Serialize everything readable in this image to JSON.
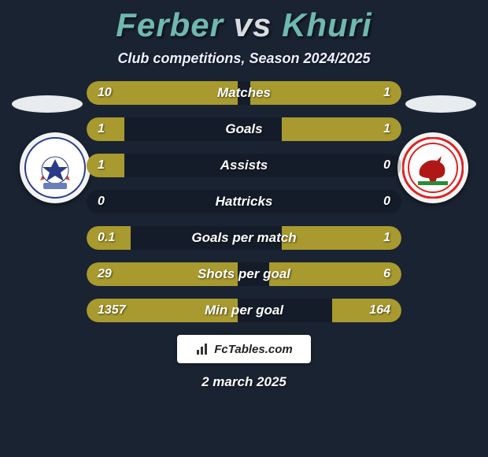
{
  "title": {
    "player1": "Ferber",
    "vs": "vs",
    "player2": "Khuri",
    "player1_color": "#6fb8b0",
    "vs_color": "#d8dce0",
    "player2_color": "#6fb8b0"
  },
  "subtitle": "Club competitions, Season 2024/2025",
  "bar_color_left": "#a89a2e",
  "bar_color_right": "#a89a2e",
  "bar_track_color": "rgba(0,0,0,0.18)",
  "background_color": "#1a2332",
  "stats": [
    {
      "label": "Matches",
      "left_val": "10",
      "right_val": "1",
      "left_pct": 48,
      "right_pct": 48
    },
    {
      "label": "Goals",
      "left_val": "1",
      "right_val": "1",
      "left_pct": 12,
      "right_pct": 38
    },
    {
      "label": "Assists",
      "left_val": "1",
      "right_val": "0",
      "left_pct": 12,
      "right_pct": 0
    },
    {
      "label": "Hattricks",
      "left_val": "0",
      "right_val": "0",
      "left_pct": 0,
      "right_pct": 0
    },
    {
      "label": "Goals per match",
      "left_val": "0.1",
      "right_val": "1",
      "left_pct": 14,
      "right_pct": 38
    },
    {
      "label": "Shots per goal",
      "left_val": "29",
      "right_val": "6",
      "left_pct": 48,
      "right_pct": 42
    },
    {
      "label": "Min per goal",
      "left_val": "1357",
      "right_val": "164",
      "left_pct": 48,
      "right_pct": 22
    }
  ],
  "brand": "FcTables.com",
  "date": "2 march 2025",
  "badge_left": {
    "bg": "#f3f3f3",
    "svg_ball_fill": "#2a3b8a",
    "svg_flame_fill": "#d93a2b"
  },
  "badge_right": {
    "bg": "#f3f3f3",
    "svg_ring_fill": "#d22",
    "svg_bull_fill": "#b01818"
  }
}
